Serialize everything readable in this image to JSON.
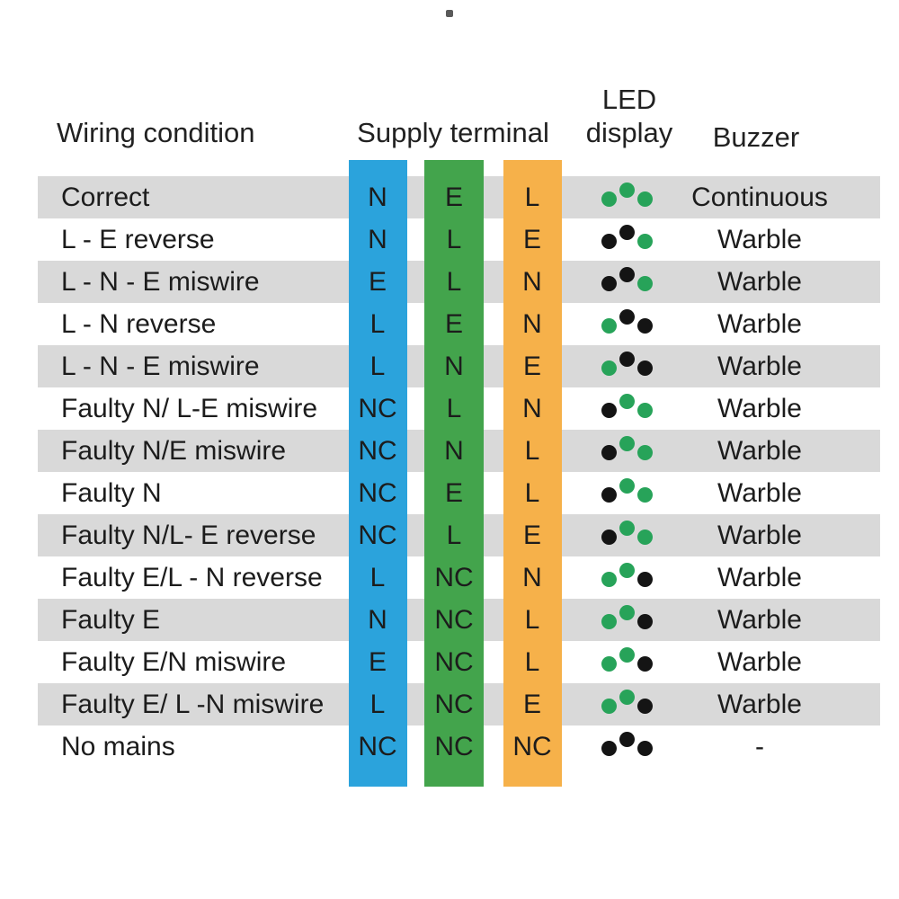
{
  "header": {
    "wiring": "Wiring condition",
    "supply": "Supply terminal",
    "led_line1": "LED",
    "led_line2": "display",
    "buzzer": "Buzzer"
  },
  "colors": {
    "terminal_blue": "#2ba3dc",
    "terminal_green": "#43a44c",
    "terminal_orange": "#f6b14a",
    "led_green": "#27a359",
    "led_black": "#141414",
    "row_gray": "#d9d9d9"
  },
  "rows": [
    {
      "condition": "Correct",
      "n": "N",
      "e": "E",
      "l": "L",
      "led": [
        "green",
        "green",
        "green"
      ],
      "buzzer": "Continuous"
    },
    {
      "condition": "L - E reverse",
      "n": "N",
      "e": "L",
      "l": "E",
      "led": [
        "black",
        "black",
        "green"
      ],
      "buzzer": "Warble"
    },
    {
      "condition": "L - N - E miswire",
      "n": "E",
      "e": "L",
      "l": "N",
      "led": [
        "black",
        "black",
        "green"
      ],
      "buzzer": "Warble"
    },
    {
      "condition": "L - N reverse",
      "n": "L",
      "e": "E",
      "l": "N",
      "led": [
        "green",
        "black",
        "black"
      ],
      "buzzer": "Warble"
    },
    {
      "condition": "L - N - E miswire",
      "n": "L",
      "e": "N",
      "l": "E",
      "led": [
        "green",
        "black",
        "black"
      ],
      "buzzer": "Warble"
    },
    {
      "condition": "Faulty N/ L-E miswire",
      "n": "NC",
      "e": "L",
      "l": "N",
      "led": [
        "black",
        "green",
        "green"
      ],
      "buzzer": "Warble"
    },
    {
      "condition": "Faulty N/E miswire",
      "n": "NC",
      "e": "N",
      "l": "L",
      "led": [
        "black",
        "green",
        "green"
      ],
      "buzzer": "Warble"
    },
    {
      "condition": "Faulty N",
      "n": "NC",
      "e": "E",
      "l": "L",
      "led": [
        "black",
        "green",
        "green"
      ],
      "buzzer": "Warble"
    },
    {
      "condition": "Faulty N/L- E  reverse",
      "n": "NC",
      "e": "L",
      "l": "E",
      "led": [
        "black",
        "green",
        "green"
      ],
      "buzzer": "Warble"
    },
    {
      "condition": "Faulty E/L - N reverse",
      "n": "L",
      "e": "NC",
      "l": "N",
      "led": [
        "green",
        "green",
        "black"
      ],
      "buzzer": "Warble"
    },
    {
      "condition": "Faulty E",
      "n": "N",
      "e": "NC",
      "l": "L",
      "led": [
        "green",
        "green",
        "black"
      ],
      "buzzer": "Warble"
    },
    {
      "condition": "Faulty E/N miswire",
      "n": "E",
      "e": "NC",
      "l": "L",
      "led": [
        "green",
        "green",
        "black"
      ],
      "buzzer": "Warble"
    },
    {
      "condition": "Faulty E/ L -N miswire",
      "n": "L",
      "e": "NC",
      "l": "E",
      "led": [
        "green",
        "green",
        "black"
      ],
      "buzzer": "Warble"
    },
    {
      "condition": "No mains",
      "n": "NC",
      "e": "NC",
      "l": "NC",
      "led": [
        "black",
        "black",
        "black"
      ],
      "buzzer": "-"
    }
  ]
}
